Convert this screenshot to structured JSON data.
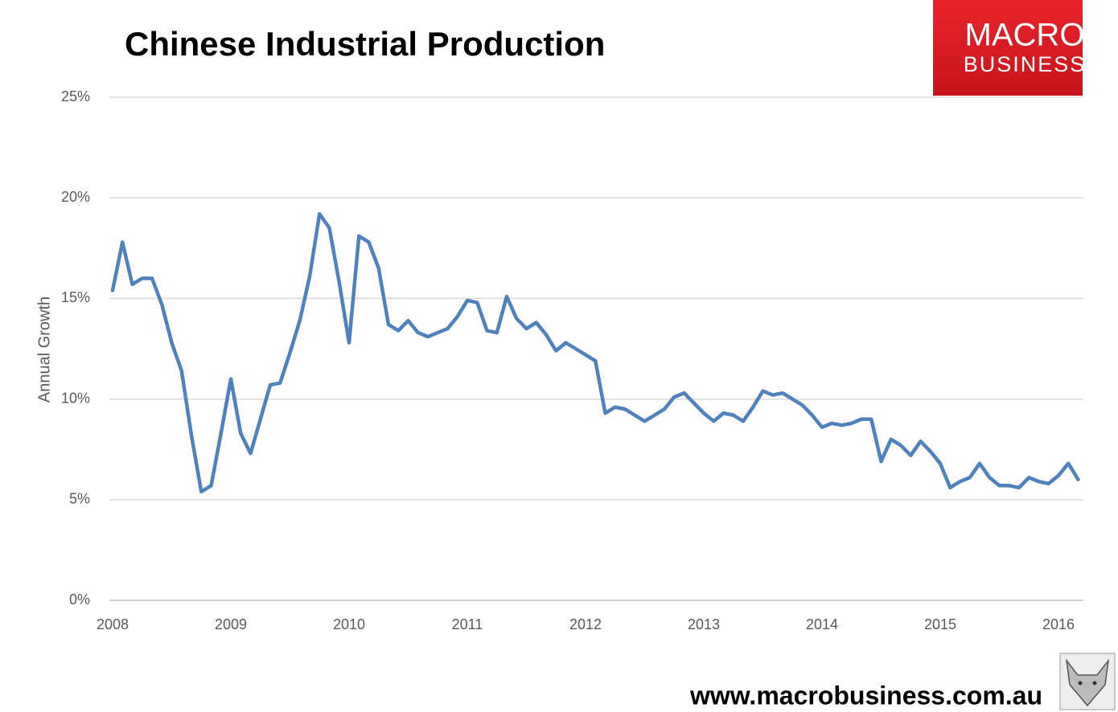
{
  "chart_data": {
    "type": "line",
    "title": "Chinese Industrial Production",
    "y_label": "Annual Growth",
    "logo": [
      "MACRO",
      "BUSINESS"
    ],
    "source": "www.macrobusiness.com.au",
    "categories": [
      "2008",
      null,
      null,
      null,
      null,
      null,
      null,
      null,
      null,
      null,
      null,
      null,
      "2009",
      null,
      null,
      null,
      null,
      null,
      null,
      null,
      null,
      null,
      null,
      null,
      "2010",
      null,
      null,
      null,
      null,
      null,
      null,
      null,
      null,
      null,
      null,
      null,
      "2011",
      null,
      null,
      null,
      null,
      null,
      null,
      null,
      null,
      null,
      null,
      null,
      "2012",
      null,
      null,
      null,
      null,
      null,
      null,
      null,
      null,
      null,
      null,
      null,
      "2013",
      null,
      null,
      null,
      null,
      null,
      null,
      null,
      null,
      null,
      null,
      null,
      "2014",
      null,
      null,
      null,
      null,
      null,
      null,
      null,
      null,
      null,
      null,
      null,
      "2015",
      null,
      null,
      null,
      null,
      null,
      null,
      null,
      null,
      null,
      null,
      null,
      "2016",
      null,
      null
    ],
    "series": [
      {
        "name": "Annual Growth",
        "color": "#4f81bd",
        "values": [
          15.4,
          17.8,
          15.7,
          16.0,
          16.0,
          14.7,
          12.8,
          11.4,
          8.2,
          5.4,
          5.7,
          8.3,
          11.0,
          8.3,
          7.3,
          9.0,
          10.7,
          10.8,
          12.3,
          13.9,
          16.1,
          19.2,
          18.5,
          15.8,
          12.8,
          18.1,
          17.8,
          16.5,
          13.7,
          13.4,
          13.9,
          13.3,
          13.1,
          13.3,
          13.5,
          14.1,
          14.9,
          14.8,
          13.4,
          13.3,
          15.1,
          14.0,
          13.5,
          13.8,
          13.2,
          12.4,
          12.8,
          12.5,
          12.2,
          11.9,
          9.3,
          9.6,
          9.5,
          9.2,
          8.9,
          9.2,
          9.5,
          10.1,
          10.3,
          9.8,
          9.3,
          8.9,
          9.3,
          9.2,
          8.9,
          9.6,
          10.4,
          10.2,
          10.3,
          10.0,
          9.7,
          9.2,
          8.6,
          8.8,
          8.7,
          8.8,
          9.0,
          9.0,
          6.9,
          8.0,
          7.7,
          7.2,
          7.9,
          7.4,
          6.8,
          5.6,
          5.9,
          6.1,
          6.8,
          6.1,
          5.7,
          5.7,
          5.6,
          6.1,
          5.9,
          5.8,
          6.2,
          6.8,
          6.0
        ]
      }
    ],
    "ylim": [
      0,
      25
    ],
    "yticks": [
      {
        "value": 0,
        "label": "0%"
      },
      {
        "value": 5,
        "label": "5%"
      },
      {
        "value": 10,
        "label": "10%"
      },
      {
        "value": 15,
        "label": "15%"
      },
      {
        "value": 20,
        "label": "20%"
      },
      {
        "value": 25,
        "label": "25%"
      }
    ],
    "grid": true
  }
}
